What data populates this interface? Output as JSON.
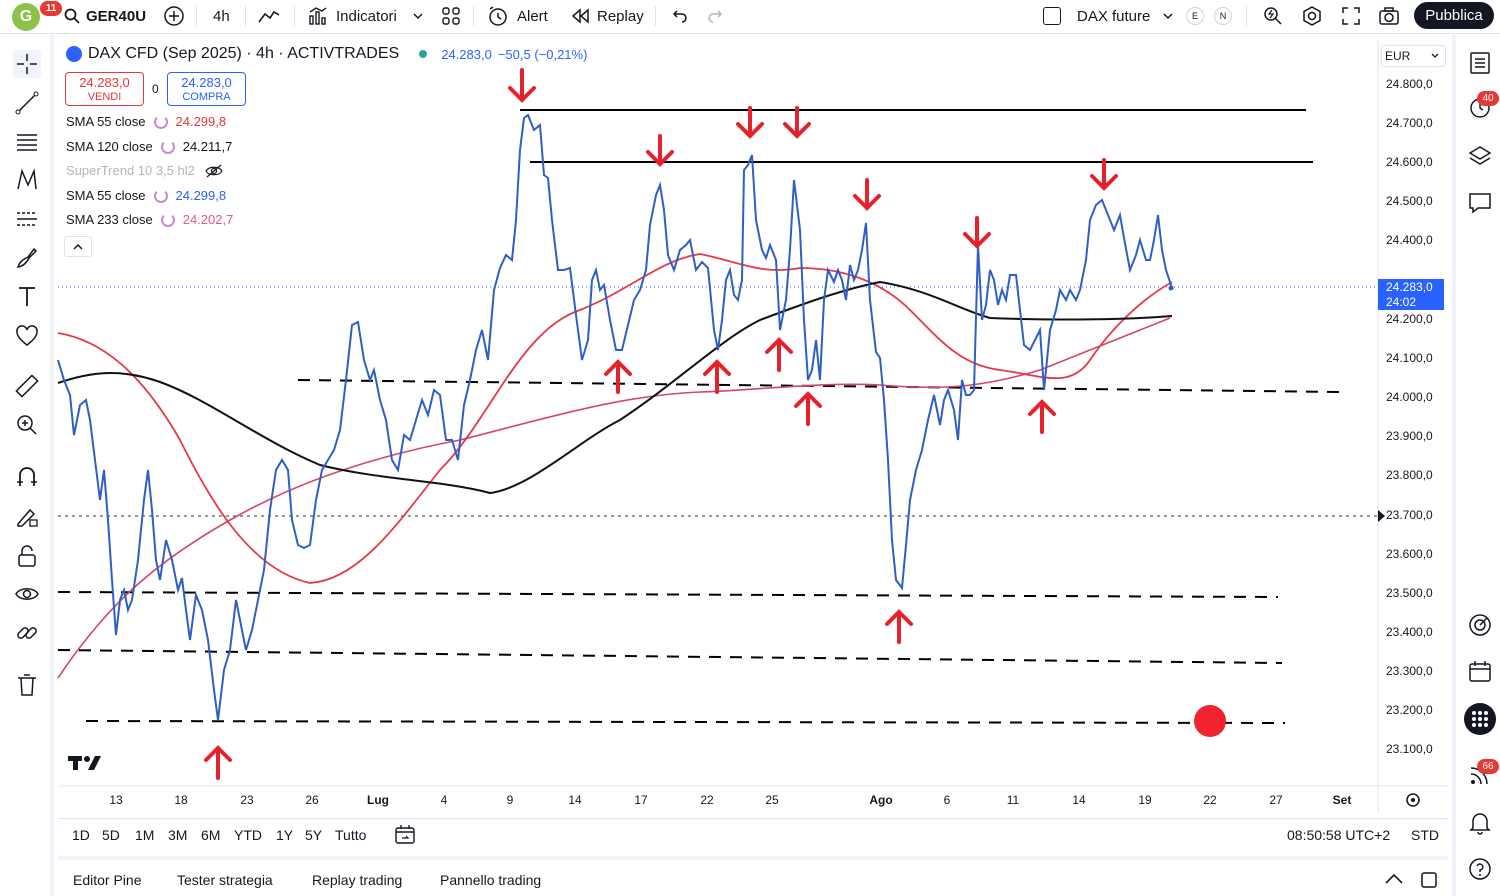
{
  "toolbar": {
    "logo_letter": "G",
    "logo_badge": "11",
    "symbol": "GER40U",
    "interval": "4h",
    "indicators_label": "Indicatori",
    "alert_label": "Alert",
    "replay_label": "Replay",
    "compare_symbol": "DAX future",
    "session_e": "E",
    "session_n": "N",
    "publish_label": "Pubblica"
  },
  "legend": {
    "title": "DAX CFD (Sep 2025) · 4h · ACTIVTRADES",
    "last": "24.283,0",
    "change": "−50,5 (−0,21%)",
    "sell_price": "24.283,0",
    "sell_label": "VENDI",
    "spread": "0",
    "buy_price": "24.283,0",
    "buy_label": "COMPRA",
    "indicators": [
      {
        "name": "SMA 55 close",
        "value": "24.299,8",
        "color": "#e53935"
      },
      {
        "name": "SMA 120 close",
        "value": "24.211,7",
        "color": "#131722"
      },
      {
        "name": "SuperTrend 10 3,5 hl2",
        "value": "",
        "color": "#b2b5be"
      },
      {
        "name": "SMA 55 close",
        "value": "24.299,8",
        "color": "#2962ff"
      },
      {
        "name": "SMA 233 close",
        "value": "24.202,7",
        "color": "#e5568f"
      }
    ]
  },
  "price_axis": {
    "currency": "EUR",
    "labels": [
      "24.800,0",
      "24.700,0",
      "24.600,0",
      "24.500,0",
      "24.400,0",
      "24.200,0",
      "24.100,0",
      "24.000,0",
      "23.900,0",
      "23.800,0",
      "23.600,0",
      "23.500,0",
      "23.400,0",
      "23.300,0",
      "23.200,0",
      "23.100,0"
    ],
    "current_price": "24.283,0",
    "countdown": "24:02",
    "alert_price": "23.700,0"
  },
  "time_axis": {
    "labels": [
      "13",
      "18",
      "23",
      "26",
      "Lug",
      "4",
      "9",
      "14",
      "17",
      "22",
      "25",
      "Ago",
      "6",
      "11",
      "14",
      "19",
      "22",
      "27",
      "Set"
    ]
  },
  "ranges": [
    "1D",
    "5D",
    "1M",
    "3M",
    "6M",
    "YTD",
    "1Y",
    "5Y",
    "Tutto"
  ],
  "clock": "08:50:58 UTC+2",
  "session_type": "STD",
  "bottom_tabs": [
    "Editor Pine",
    "Tester strategia",
    "Replay trading",
    "Pannello trading"
  ],
  "right_badges": {
    "alerts": "40",
    "notifications": "66"
  },
  "colors": {
    "price_line": "#2f5fc4",
    "sma55": "#e53945",
    "sma120": "#111111",
    "sma233": "#d2476b",
    "arrow": "#e5212c",
    "current_price_bg": "#2962ff"
  },
  "chart_data": {
    "type": "line",
    "title": "DAX CFD (Sep 2025) · 4h · ACTIVTRADES",
    "ylim": [
      23050,
      24850
    ],
    "x": [
      "13",
      "18",
      "23",
      "26",
      "Lug",
      "4",
      "9",
      "14",
      "17",
      "22",
      "25",
      "Ago",
      "6",
      "11",
      "14",
      "19",
      "22",
      "27",
      "Set"
    ],
    "series": [
      {
        "name": "SMA 55 close",
        "last_value": 24299.8
      },
      {
        "name": "SMA 120 close",
        "last_value": 24211.7
      },
      {
        "name": "SMA 233 close",
        "last_value": 24202.7
      }
    ],
    "last_price": 24283.0
  }
}
